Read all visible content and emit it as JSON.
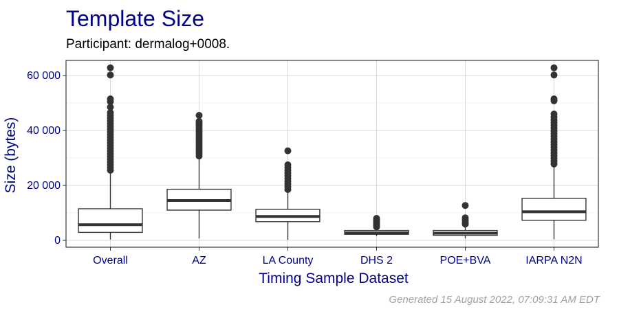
{
  "chart_data": {
    "type": "box",
    "title": "Template Size",
    "subtitle": "Participant: dermalog+0008.",
    "xlabel": "Timing Sample Dataset",
    "ylabel": "Size (bytes)",
    "ylim": [
      -2500,
      65500
    ],
    "yticks": [
      0,
      20000,
      40000,
      60000
    ],
    "ytick_labels": [
      "0",
      "20 000",
      "40 000",
      "60 000"
    ],
    "grid": true,
    "categories": [
      "Overall",
      "AZ",
      "LA County",
      "DHS 2",
      "POE+BVA",
      "IARPA N2N"
    ],
    "boxes": [
      {
        "category": "Overall",
        "whisker_low": 300,
        "q1": 2900,
        "median": 5700,
        "q3": 11500,
        "whisker_high": 24800,
        "outliers": [
          25500,
          26500,
          27500,
          28500,
          29500,
          30500,
          31500,
          32500,
          33500,
          34500,
          35500,
          36500,
          37500,
          38500,
          39500,
          40500,
          41500,
          42500,
          43500,
          44500,
          45500,
          46500,
          48500,
          50500,
          51500,
          60200,
          62800
        ]
      },
      {
        "category": "AZ",
        "whisker_low": 700,
        "q1": 11000,
        "median": 14500,
        "q3": 18600,
        "whisker_high": 30000,
        "outliers": [
          30700,
          31500,
          32300,
          33100,
          33900,
          34700,
          35500,
          36300,
          37100,
          37900,
          38700,
          39500,
          40300,
          41100,
          41900,
          42700,
          43300,
          45500
        ]
      },
      {
        "category": "LA County",
        "whisker_low": 200,
        "q1": 6800,
        "median": 8700,
        "q3": 11300,
        "whisker_high": 17800,
        "outliers": [
          18500,
          19500,
          20500,
          21500,
          22500,
          23500,
          24500,
          25500,
          26500,
          27500,
          32600
        ]
      },
      {
        "category": "DHS 2",
        "whisker_low": 1500,
        "q1": 2200,
        "median": 2700,
        "q3": 3600,
        "whisker_high": 4400,
        "outliers": [
          4900,
          5500,
          6000,
          6500,
          7000,
          7500,
          8000
        ]
      },
      {
        "category": "POE+BVA",
        "whisker_low": 700,
        "q1": 1800,
        "median": 2600,
        "q3": 3600,
        "whisker_high": 5400,
        "outliers": [
          5900,
          6600,
          7400,
          8200,
          12700
        ]
      },
      {
        "category": "IARPA N2N",
        "whisker_low": 400,
        "q1": 7300,
        "median": 10400,
        "q3": 15300,
        "whisker_high": 27200,
        "outliers": [
          27800,
          28800,
          29800,
          30800,
          31800,
          32800,
          33800,
          34800,
          35800,
          36800,
          37800,
          38800,
          39800,
          40800,
          41800,
          42800,
          43800,
          44800,
          46000,
          50800,
          51500,
          60200,
          62800
        ]
      }
    ],
    "colors": {
      "title": "#00008b",
      "axis_text": "#00008b",
      "caption": "#a0a0a0",
      "box": "#333333",
      "grid": "#d9d9d9",
      "panel_border": "#333333"
    }
  },
  "caption": "Generated 15 August 2022, 07:09:31 AM EDT"
}
